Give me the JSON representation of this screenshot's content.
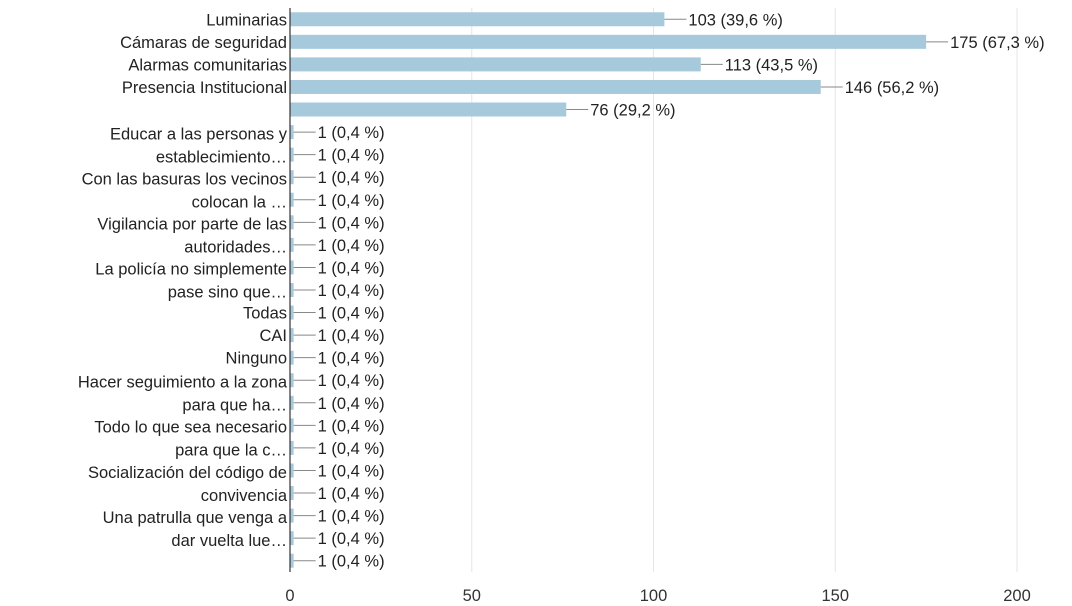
{
  "chart_data": {
    "type": "bar",
    "orientation": "horizontal",
    "xlim": [
      0,
      200
    ],
    "x_ticks": [
      0,
      50,
      100,
      150,
      200
    ],
    "grid": true,
    "bar_color": "#a7c9dc",
    "categories": [
      "Luminarias",
      "Cámaras de seguridad",
      "Alarmas comunitarias",
      "Presencia Institucional",
      "",
      "",
      "",
      "",
      "",
      "",
      "",
      "",
      "",
      "Todas",
      "CAI",
      "Ninguno",
      "",
      "",
      "",
      "",
      "",
      "",
      "",
      "",
      ""
    ],
    "values": [
      103,
      175,
      113,
      146,
      76,
      1,
      1,
      1,
      1,
      1,
      1,
      1,
      1,
      1,
      1,
      1,
      1,
      1,
      1,
      1,
      1,
      1,
      1,
      1,
      1
    ],
    "value_labels": [
      "103 (39,6 %)",
      "175 (67,3 %)",
      "113 (43,5 %)",
      "146 (56,2 %)",
      "76 (29,2 %)",
      "1 (0,4 %)",
      "1 (0,4 %)",
      "1 (0,4 %)",
      "1 (0,4 %)",
      "1 (0,4 %)",
      "1 (0,4 %)",
      "1 (0,4 %)",
      "1 (0,4 %)",
      "1 (0,4 %)",
      "1 (0,4 %)",
      "1 (0,4 %)",
      "1 (0,4 %)",
      "1 (0,4 %)",
      "1 (0,4 %)",
      "1 (0,4 %)",
      "1 (0,4 %)",
      "1 (0,4 %)",
      "1 (0,4 %)",
      "1 (0,4 %)",
      "1 (0,4 %)"
    ],
    "wrapped_labels": [
      {
        "lines": [
          "Educar a las personas y",
          "establecimiento…"
        ]
      },
      {
        "lines": [
          "Con las basuras los vecinos",
          "colocan la …"
        ]
      },
      {
        "lines": [
          "Vigilancia por parte de las",
          "autoridades…"
        ]
      },
      {
        "lines": [
          "La policía no simplemente",
          "pase sino que…"
        ]
      },
      {
        "lines": [
          "Hacer seguimiento a la zona",
          "para que ha…"
        ]
      },
      {
        "lines": [
          "Todo lo que sea necesario",
          "para que la c…"
        ]
      },
      {
        "lines": [
          "Socialización del código de",
          "convivencia"
        ]
      },
      {
        "lines": [
          "Una patrulla que venga a",
          "dar vuelta lue…"
        ]
      }
    ]
  }
}
